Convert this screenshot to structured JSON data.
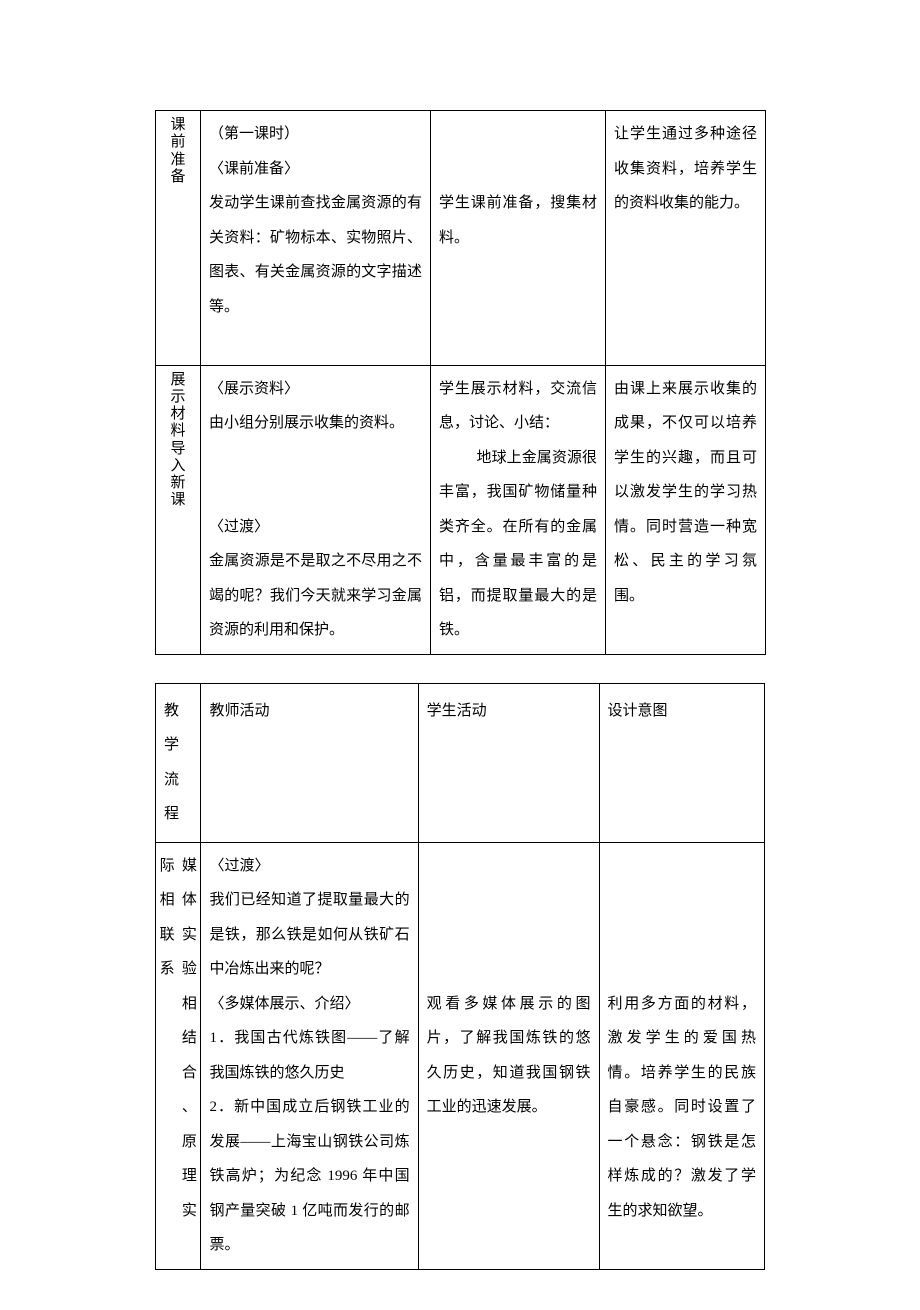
{
  "table1": {
    "rows": [
      {
        "label": "课前准备",
        "teacher": {
          "lines": [
            "（第一课时）",
            "〈课前准备〉",
            "发动学生课前查找金属资源的有关资料：矿物标本、实物照片、图表、有关金属资源的文字描述等。"
          ]
        },
        "student": "学生课前准备，搜集材料。",
        "design": "让学生通过多种途径收集资料，培养学生的资料收集的能力。"
      },
      {
        "label": "展示材料导入新课",
        "teacher": {
          "block1": [
            "〈展示资料〉",
            "由小组分别展示收集的资料。"
          ],
          "block2": [
            "〈过渡〉",
            "金属资源是不是取之不尽用之不竭的呢？我们今天就来学习金属资源的利用和保护。"
          ]
        },
        "student": {
          "line1": "学生展示材料，交流信息，讨论、小结：",
          "line2": "地球上金属资源很丰富，我国矿物储量种类齐全。在所有的金属中，含量最丰富的是铝，而提取量最大的是铁。"
        },
        "design": "由课上来展示收集的成果，不仅可以培养学生的兴趣，而且可以激发学生的学习热情。同时营造一种宽松、民主的学习氛围。"
      }
    ]
  },
  "table2": {
    "header": {
      "col1": "教学流程",
      "col2": "教师活动",
      "col3": "学生活动",
      "col4": "设计意图"
    },
    "row": {
      "label_left": "际相联系",
      "label_right": "媒体实验相结合、原理实",
      "teacher": {
        "block1": [
          "〈过渡〉",
          "我们已经知道了提取量最大的是铁，那么铁是如何从铁矿石中冶炼出来的呢？"
        ],
        "block2": [
          "〈多媒体展示、介绍〉",
          "1．我国古代炼铁图——了解我国炼铁的悠久历史",
          "2．新中国成立后钢铁工业的发展——上海宝山钢铁公司炼铁高炉；为纪念 1996 年中国钢产量突破 1 亿吨而发行的邮票。"
        ]
      },
      "student": "观看多媒体展示的图片，了解我国炼铁的悠久历史，知道我国钢铁工业的迅速发展。",
      "design": "利用多方面的材料，激发学生的爱国热情。培养学生的民族自豪感。同时设置了一个悬念：钢铁是怎样炼成的？激发了学生的求知欲望。"
    }
  }
}
